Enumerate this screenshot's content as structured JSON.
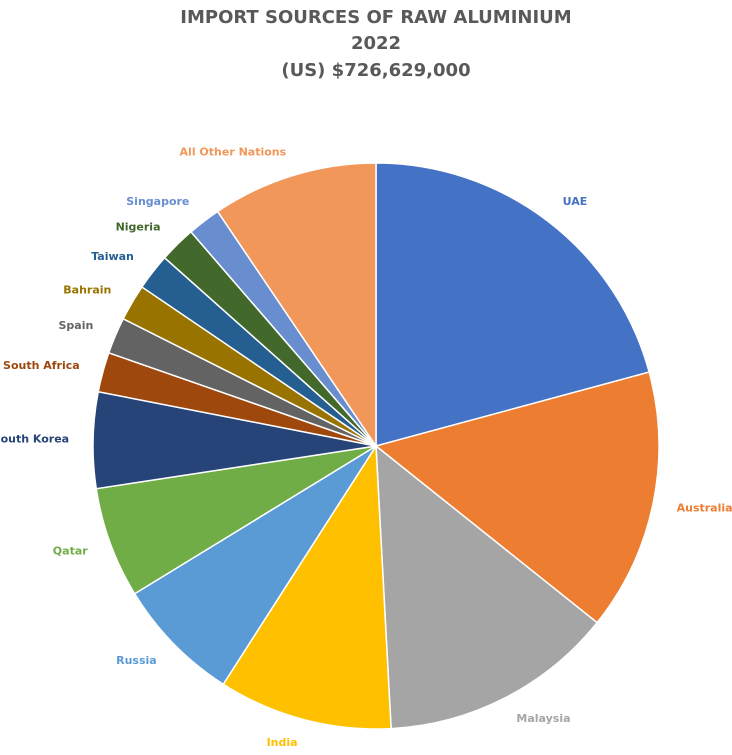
{
  "chart_data": {
    "type": "pie",
    "title": "IMPORT SOURCES OF RAW ALUMINIUM",
    "subtitle": "2022",
    "total_label": "(US) $726,629,000",
    "label_color": "#595959",
    "slices": [
      {
        "label": "UAE",
        "value": 22.0,
        "color": "#4472C4"
      },
      {
        "label": "Australia",
        "value": 15.8,
        "color": "#ED7D31"
      },
      {
        "label": "Malaysia",
        "value": 14.2,
        "color": "#A5A5A5"
      },
      {
        "label": "India",
        "value": 10.5,
        "color": "#FFC000"
      },
      {
        "label": "Russia",
        "value": 7.6,
        "color": "#5B9BD5"
      },
      {
        "label": "Qatar",
        "value": 6.7,
        "color": "#70AD47"
      },
      {
        "label": "South Korea",
        "value": 5.8,
        "color": "#264478"
      },
      {
        "label": "South Africa",
        "value": 2.4,
        "color": "#9E480E"
      },
      {
        "label": "Spain",
        "value": 2.2,
        "color": "#636363"
      },
      {
        "label": "Bahrain",
        "value": 2.2,
        "color": "#997300"
      },
      {
        "label": "Taiwan",
        "value": 2.2,
        "color": "#255E91"
      },
      {
        "label": "Nigeria",
        "value": 2.2,
        "color": "#43682B"
      },
      {
        "label": "Singapore",
        "value": 2.0,
        "color": "#698ED0"
      },
      {
        "label": "All Other Nations",
        "value": 10.0,
        "color": "#F1975A"
      }
    ]
  }
}
